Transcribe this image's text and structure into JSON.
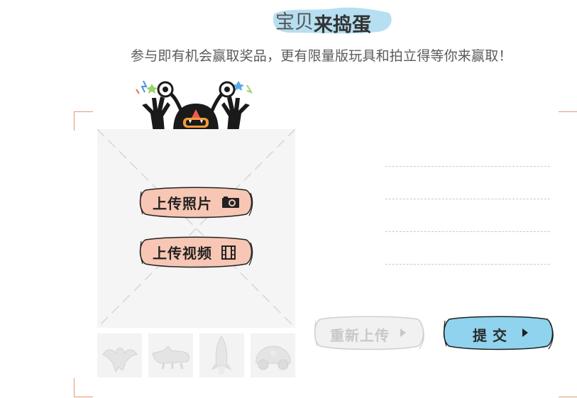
{
  "header": {
    "title_part1": "宝贝",
    "title_part2": "来捣蛋",
    "subtitle": "参与即有机会赢取奖品，更有限量版玩具和拍立得等你来赢取！"
  },
  "upload": {
    "photo_label": "上传照片",
    "video_label": "上传视频",
    "photo_icon": "camera-icon",
    "video_icon": "film-icon"
  },
  "thumbnails": [
    {
      "icon": "bat-creature-icon"
    },
    {
      "icon": "crocodile-icon"
    },
    {
      "icon": "rocket-character-icon"
    },
    {
      "icon": "toy-car-icon"
    }
  ],
  "form": {
    "lines": 4
  },
  "actions": {
    "reupload_label": "重新上传",
    "submit_label": "提交"
  },
  "colors": {
    "title_highlight": "#9fd3ea",
    "upload_button_fill": "#f7c5b2",
    "submit_fill": "#8fd3ee",
    "corner": "#e09a7a"
  }
}
